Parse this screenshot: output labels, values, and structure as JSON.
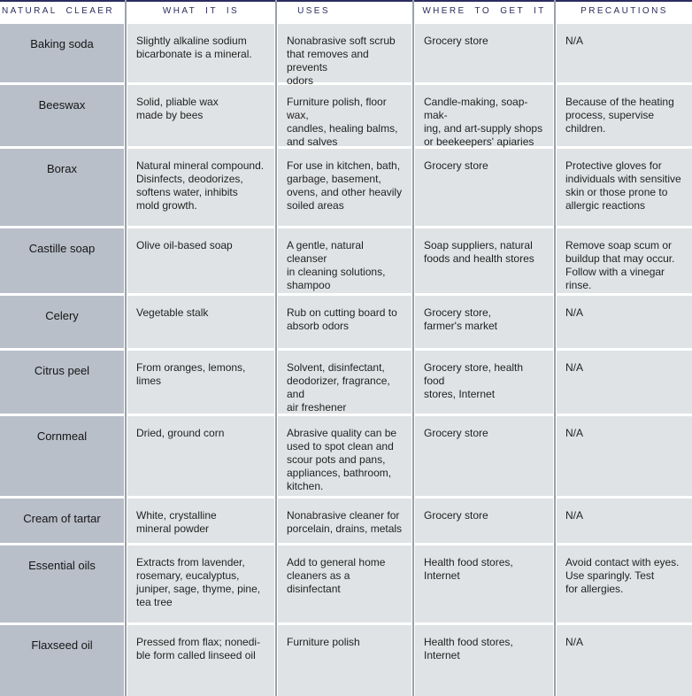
{
  "table": {
    "columns": [
      "NATURAL CLEAER",
      "WHAT IT IS",
      "USES",
      "WHERE TO GET IT",
      "PRECAUTIONS"
    ],
    "rows": [
      {
        "name": "Baking soda",
        "what_it_is": "Slightly alkaline sodium\nbicarbonate is a mineral.",
        "uses": "Nonabrasive soft scrub\nthat removes and prevents\nodors",
        "where_to_get_it": "Grocery store",
        "precautions": "N/A"
      },
      {
        "name": "Beeswax",
        "what_it_is": "Solid, pliable wax\nmade by bees",
        "uses": "Furniture polish, floor wax,\ncandles, healing balms,\nand salves",
        "where_to_get_it": "Candle-making, soap-mak-\ning, and art-supply shops\nor beekeepers' apiaries",
        "precautions": "Because of the heating\nprocess, supervise\nchildren."
      },
      {
        "name": "Borax",
        "what_it_is": "Natural mineral compound.\nDisinfects, deodorizes,\nsoftens water, inhibits\nmold growth.",
        "uses": "For use in kitchen, bath,\ngarbage, basement,\novens, and other heavily\nsoiled areas",
        "where_to_get_it": "Grocery store",
        "precautions": "Protective gloves for\nindividuals with sensitive\nskin or those prone to\nallergic reactions"
      },
      {
        "name": "Castille soap",
        "what_it_is": "Olive oil-based soap",
        "uses": "A gentle, natural cleanser\nin cleaning solutions,\nshampoo",
        "where_to_get_it": "Soap suppliers, natural\nfoods and health stores",
        "precautions": "Remove soap scum or\nbuildup that may occur.\nFollow with a vinegar\nrinse."
      },
      {
        "name": "Celery",
        "what_it_is": "Vegetable stalk",
        "uses": "Rub on cutting board to\nabsorb odors",
        "where_to_get_it": "Grocery store,\nfarmer's market",
        "precautions": "N/A"
      },
      {
        "name": "Citrus peel",
        "what_it_is": "From oranges, lemons,\nlimes",
        "uses": "Solvent, disinfectant,\ndeodorizer, fragrance, and\nair freshener",
        "where_to_get_it": "Grocery store, health food\nstores, Internet",
        "precautions": "N/A"
      },
      {
        "name": "Cornmeal",
        "what_it_is": "Dried, ground corn",
        "uses": "Abrasive quality can be\nused to spot clean and\nscour pots and pans,\nappliances, bathroom,\nkitchen.",
        "where_to_get_it": "Grocery store",
        "precautions": "N/A"
      },
      {
        "name": "Cream of tartar",
        "what_it_is": "White, crystalline\nmineral powder",
        "uses": "Nonabrasive cleaner for\nporcelain, drains, metals",
        "where_to_get_it": "Grocery store",
        "precautions": "N/A"
      },
      {
        "name": "Essential oils",
        "what_it_is": "Extracts from lavender,\nrosemary, eucalyptus,\njuniper, sage, thyme, pine,\ntea tree",
        "uses": "Add to general home\ncleaners as a disinfectant",
        "where_to_get_it": "Health food stores,\nInternet",
        "precautions": "Avoid contact with eyes.\nUse sparingly. Test\nfor allergies."
      },
      {
        "name": "Flaxseed oil",
        "what_it_is": "Pressed from flax; nonedi-\nble form called linseed oil",
        "uses": "Furniture polish",
        "where_to_get_it": "Health food stores,\nInternet",
        "precautions": "N/A"
      }
    ]
  },
  "colors": {
    "top_border": "#2b2c5f",
    "header_text": "#2b2c5f",
    "column_divider": "#9aa1a9",
    "name_cell_bg": "#b8bfc9",
    "data_cell_bg": "#e0e3e5"
  }
}
